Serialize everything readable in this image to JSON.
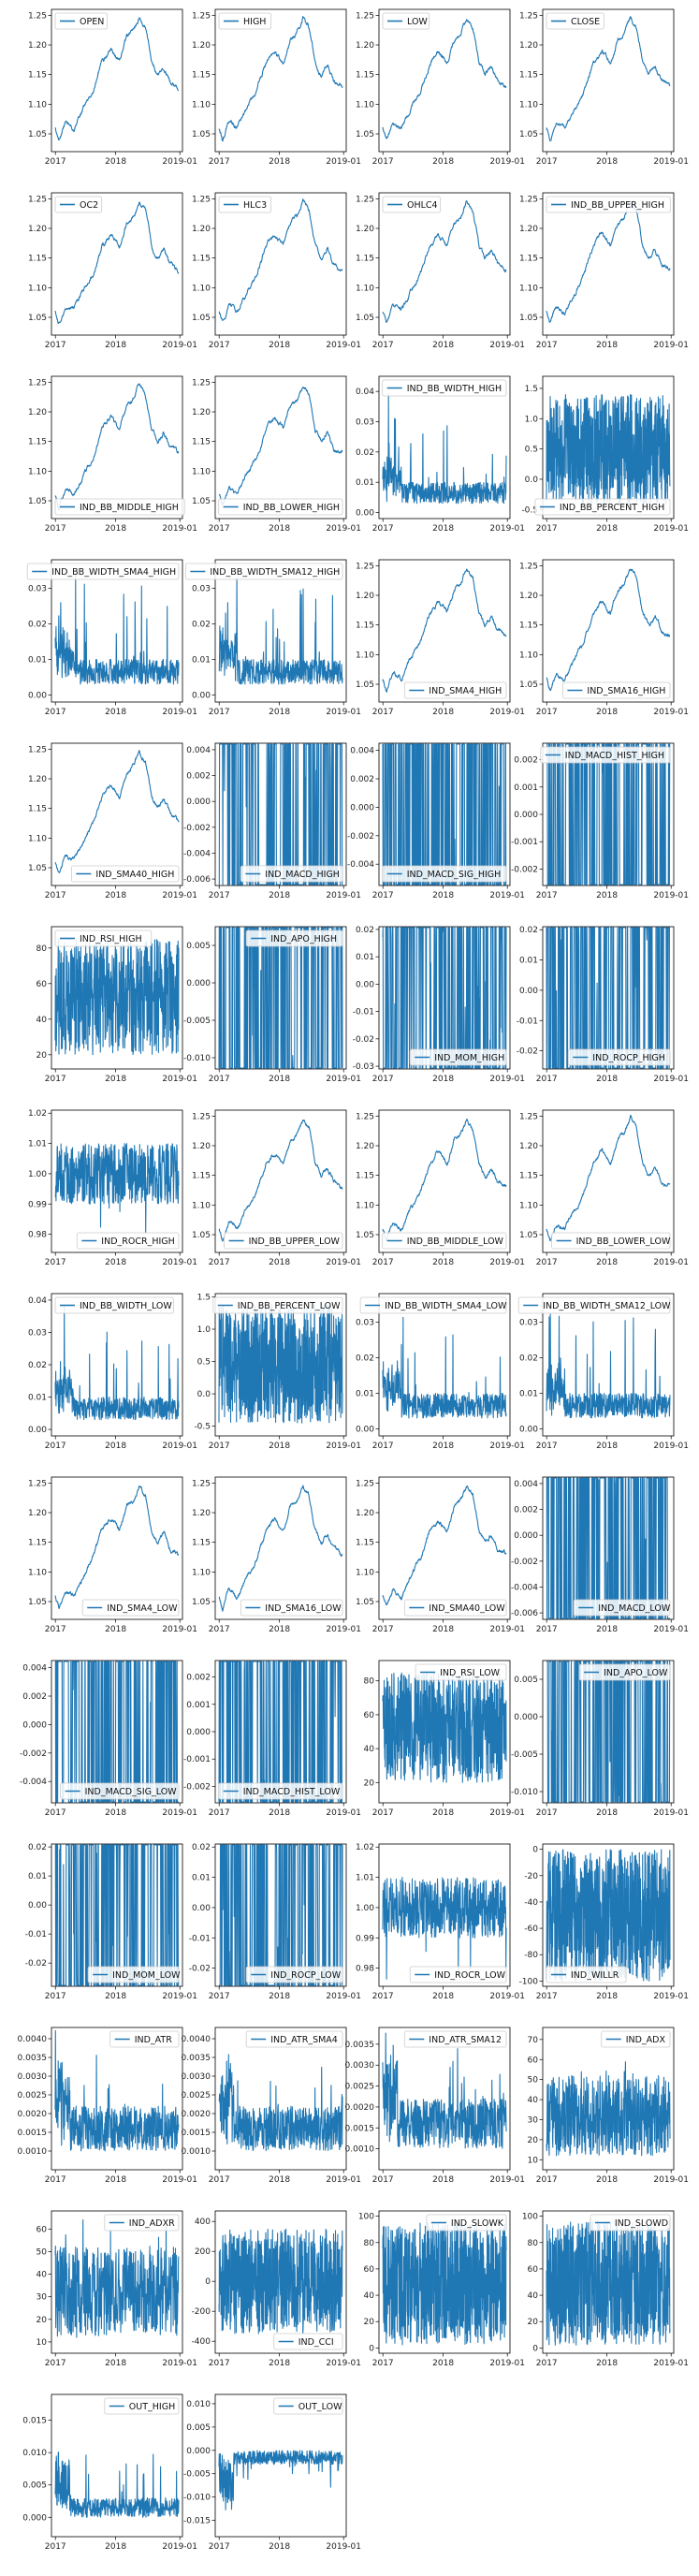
{
  "colors": {
    "series": "#1f77b4",
    "axis": "#000000",
    "background": "#ffffff"
  },
  "x_ticks": [
    "2017",
    "2018",
    "2019-01"
  ],
  "chart_data": [
    {
      "type": "line",
      "legend": "OPEN",
      "legend_loc": "upper-left",
      "shape": "price",
      "ylim": [
        1.02,
        1.26
      ],
      "yticks": [
        "1.05",
        "1.10",
        "1.15",
        "1.20",
        "1.25"
      ]
    },
    {
      "type": "line",
      "legend": "HIGH",
      "legend_loc": "upper-left",
      "shape": "price",
      "ylim": [
        1.02,
        1.26
      ],
      "yticks": [
        "1.05",
        "1.10",
        "1.15",
        "1.20",
        "1.25"
      ]
    },
    {
      "type": "line",
      "legend": "LOW",
      "legend_loc": "upper-left",
      "shape": "price",
      "ylim": [
        1.02,
        1.26
      ],
      "yticks": [
        "1.05",
        "1.10",
        "1.15",
        "1.20",
        "1.25"
      ]
    },
    {
      "type": "line",
      "legend": "CLOSE",
      "legend_loc": "upper-left",
      "shape": "price",
      "ylim": [
        1.02,
        1.26
      ],
      "yticks": [
        "1.05",
        "1.10",
        "1.15",
        "1.20",
        "1.25"
      ]
    },
    {
      "type": "line",
      "legend": "OC2",
      "legend_loc": "upper-left",
      "shape": "price",
      "ylim": [
        1.02,
        1.26
      ],
      "yticks": [
        "1.05",
        "1.10",
        "1.15",
        "1.20",
        "1.25"
      ]
    },
    {
      "type": "line",
      "legend": "HLC3",
      "legend_loc": "upper-left",
      "shape": "price",
      "ylim": [
        1.02,
        1.26
      ],
      "yticks": [
        "1.05",
        "1.10",
        "1.15",
        "1.20",
        "1.25"
      ]
    },
    {
      "type": "line",
      "legend": "OHLC4",
      "legend_loc": "upper-left",
      "shape": "price",
      "ylim": [
        1.02,
        1.26
      ],
      "yticks": [
        "1.05",
        "1.10",
        "1.15",
        "1.20",
        "1.25"
      ]
    },
    {
      "type": "line",
      "legend": "IND_BB_UPPER_HIGH",
      "legend_loc": "upper-left",
      "shape": "price",
      "ylim": [
        1.02,
        1.26
      ],
      "yticks": [
        "1.05",
        "1.10",
        "1.15",
        "1.20",
        "1.25"
      ]
    },
    {
      "type": "line",
      "legend": "IND_BB_MIDDLE_HIGH",
      "legend_loc": "lower-left",
      "shape": "price",
      "ylim": [
        1.02,
        1.26
      ],
      "yticks": [
        "1.05",
        "1.10",
        "1.15",
        "1.20",
        "1.25"
      ]
    },
    {
      "type": "line",
      "legend": "IND_BB_LOWER_HIGH",
      "legend_loc": "lower-right",
      "shape": "price",
      "ylim": [
        1.02,
        1.26
      ],
      "yticks": [
        "1.05",
        "1.10",
        "1.15",
        "1.20",
        "1.25"
      ]
    },
    {
      "type": "line",
      "legend": "IND_BB_WIDTH_HIGH",
      "legend_loc": "upper-right",
      "shape": "width",
      "ylim": [
        -0.002,
        0.045
      ],
      "yticks": [
        "0.00",
        "0.01",
        "0.02",
        "0.03",
        "0.04"
      ]
    },
    {
      "type": "line",
      "legend": "IND_BB_PERCENT_HIGH",
      "legend_loc": "lower-right",
      "shape": "percent",
      "ylim": [
        -0.65,
        1.7
      ],
      "yticks": [
        "-0.5",
        "0.0",
        "0.5",
        "1.0",
        "1.5"
      ]
    },
    {
      "type": "line",
      "legend": "IND_BB_WIDTH_SMA4_HIGH",
      "legend_loc": "upper-right",
      "shape": "width",
      "ylim": [
        -0.002,
        0.038
      ],
      "yticks": [
        "0.00",
        "0.01",
        "0.02",
        "0.03"
      ]
    },
    {
      "type": "line",
      "legend": "IND_BB_WIDTH_SMA12_HIGH",
      "legend_loc": "upper-right",
      "shape": "width",
      "ylim": [
        -0.002,
        0.038
      ],
      "yticks": [
        "0.00",
        "0.01",
        "0.02",
        "0.03"
      ]
    },
    {
      "type": "line",
      "legend": "IND_SMA4_HIGH",
      "legend_loc": "lower-right",
      "shape": "price",
      "ylim": [
        1.02,
        1.26
      ],
      "yticks": [
        "1.05",
        "1.10",
        "1.15",
        "1.20",
        "1.25"
      ]
    },
    {
      "type": "line",
      "legend": "IND_SMA16_HIGH",
      "legend_loc": "lower-right",
      "shape": "price",
      "ylim": [
        1.02,
        1.26
      ],
      "yticks": [
        "1.05",
        "1.10",
        "1.15",
        "1.20",
        "1.25"
      ]
    },
    {
      "type": "line",
      "legend": "IND_SMA40_HIGH",
      "legend_loc": "lower-right",
      "shape": "price",
      "ylim": [
        1.02,
        1.26
      ],
      "yticks": [
        "1.05",
        "1.10",
        "1.15",
        "1.20",
        "1.25"
      ]
    },
    {
      "type": "line",
      "legend": "IND_MACD_HIGH",
      "legend_loc": "lower-right",
      "shape": "osc",
      "ylim": [
        -0.0065,
        0.0045
      ],
      "yticks": [
        "-0.006",
        "-0.004",
        "-0.002",
        "0.000",
        "0.002",
        "0.004"
      ]
    },
    {
      "type": "line",
      "legend": "IND_MACD_SIG_HIGH",
      "legend_loc": "lower-right",
      "shape": "osc",
      "ylim": [
        -0.0055,
        0.0045
      ],
      "yticks": [
        "-0.004",
        "-0.002",
        "0.000",
        "0.002",
        "0.004"
      ]
    },
    {
      "type": "line",
      "legend": "IND_MACD_HIST_HIGH",
      "legend_loc": "upper-right",
      "shape": "osc",
      "ylim": [
        -0.0026,
        0.0026
      ],
      "yticks": [
        "-0.002",
        "-0.001",
        "0.000",
        "0.001",
        "0.002"
      ]
    },
    {
      "type": "line",
      "legend": "IND_RSI_HIGH",
      "legend_loc": "upper-left",
      "shape": "rsi",
      "ylim": [
        12,
        92
      ],
      "yticks": [
        "20",
        "40",
        "60",
        "80"
      ]
    },
    {
      "type": "line",
      "legend": "IND_APO_HIGH",
      "legend_loc": "upper-right",
      "shape": "osc",
      "ylim": [
        -0.0115,
        0.0075
      ],
      "yticks": [
        "-0.010",
        "-0.005",
        "0.000",
        "0.005"
      ]
    },
    {
      "type": "line",
      "legend": "IND_MOM_HIGH",
      "legend_loc": "lower-right",
      "shape": "osc",
      "ylim": [
        -0.031,
        0.021
      ],
      "yticks": [
        "-0.03",
        "-0.02",
        "-0.01",
        "0.00",
        "0.01",
        "0.02"
      ]
    },
    {
      "type": "line",
      "legend": "IND_ROCP_HIGH",
      "legend_loc": "lower-right",
      "shape": "osc",
      "ylim": [
        -0.026,
        0.021
      ],
      "yticks": [
        "-0.02",
        "-0.01",
        "0.00",
        "0.01",
        "0.02"
      ]
    },
    {
      "type": "line",
      "legend": "IND_ROCR_HIGH",
      "legend_loc": "lower-right",
      "shape": "ratio",
      "ylim": [
        0.974,
        1.021
      ],
      "yticks": [
        "0.98",
        "0.99",
        "1.00",
        "1.01",
        "1.02"
      ]
    },
    {
      "type": "line",
      "legend": "IND_BB_UPPER_LOW",
      "legend_loc": "lower-right",
      "shape": "price",
      "ylim": [
        1.02,
        1.26
      ],
      "yticks": [
        "1.05",
        "1.10",
        "1.15",
        "1.20",
        "1.25"
      ]
    },
    {
      "type": "line",
      "legend": "IND_BB_MIDDLE_LOW",
      "legend_loc": "lower-right",
      "shape": "price",
      "ylim": [
        1.02,
        1.26
      ],
      "yticks": [
        "1.05",
        "1.10",
        "1.15",
        "1.20",
        "1.25"
      ]
    },
    {
      "type": "line",
      "legend": "IND_BB_LOWER_LOW",
      "legend_loc": "lower-right",
      "shape": "price",
      "ylim": [
        1.02,
        1.26
      ],
      "yticks": [
        "1.05",
        "1.10",
        "1.15",
        "1.20",
        "1.25"
      ]
    },
    {
      "type": "line",
      "legend": "IND_BB_WIDTH_LOW",
      "legend_loc": "upper-left",
      "shape": "width",
      "ylim": [
        -0.002,
        0.042
      ],
      "yticks": [
        "0.00",
        "0.01",
        "0.02",
        "0.03",
        "0.04"
      ]
    },
    {
      "type": "line",
      "legend": "IND_BB_PERCENT_LOW",
      "legend_loc": "upper-right",
      "shape": "percent",
      "ylim": [
        -0.65,
        1.55
      ],
      "yticks": [
        "-0.5",
        "0.0",
        "0.5",
        "1.0",
        "1.5"
      ]
    },
    {
      "type": "line",
      "legend": "IND_BB_WIDTH_SMA4_LOW",
      "legend_loc": "upper-right",
      "shape": "width",
      "ylim": [
        -0.002,
        0.038
      ],
      "yticks": [
        "0.00",
        "0.01",
        "0.02",
        "0.03"
      ]
    },
    {
      "type": "line",
      "legend": "IND_BB_WIDTH_SMA12_LOW",
      "legend_loc": "upper-right",
      "shape": "width",
      "ylim": [
        -0.002,
        0.038
      ],
      "yticks": [
        "0.00",
        "0.01",
        "0.02",
        "0.03"
      ]
    },
    {
      "type": "line",
      "legend": "IND_SMA4_LOW",
      "legend_loc": "lower-right",
      "shape": "price",
      "ylim": [
        1.02,
        1.26
      ],
      "yticks": [
        "1.05",
        "1.10",
        "1.15",
        "1.20",
        "1.25"
      ]
    },
    {
      "type": "line",
      "legend": "IND_SMA16_LOW",
      "legend_loc": "lower-right",
      "shape": "price",
      "ylim": [
        1.02,
        1.26
      ],
      "yticks": [
        "1.05",
        "1.10",
        "1.15",
        "1.20",
        "1.25"
      ]
    },
    {
      "type": "line",
      "legend": "IND_SMA40_LOW",
      "legend_loc": "lower-right",
      "shape": "price",
      "ylim": [
        1.02,
        1.26
      ],
      "yticks": [
        "1.05",
        "1.10",
        "1.15",
        "1.20",
        "1.25"
      ]
    },
    {
      "type": "line",
      "legend": "IND_MACD_LOW",
      "legend_loc": "lower-right",
      "shape": "osc",
      "ylim": [
        -0.0065,
        0.0045
      ],
      "yticks": [
        "-0.006",
        "-0.004",
        "-0.002",
        "0.000",
        "0.002",
        "0.004"
      ]
    },
    {
      "type": "line",
      "legend": "IND_MACD_SIG_LOW",
      "legend_loc": "lower-right",
      "shape": "osc",
      "ylim": [
        -0.0055,
        0.0045
      ],
      "yticks": [
        "-0.004",
        "-0.002",
        "0.000",
        "0.002",
        "0.004"
      ]
    },
    {
      "type": "line",
      "legend": "IND_MACD_HIST_LOW",
      "legend_loc": "lower-right",
      "shape": "osc",
      "ylim": [
        -0.0026,
        0.0026
      ],
      "yticks": [
        "-0.002",
        "-0.001",
        "0.000",
        "0.001",
        "0.002"
      ]
    },
    {
      "type": "line",
      "legend": "IND_RSI_LOW",
      "legend_loc": "upper-right",
      "shape": "rsi",
      "ylim": [
        8,
        92
      ],
      "yticks": [
        "20",
        "40",
        "60",
        "80"
      ]
    },
    {
      "type": "line",
      "legend": "IND_APO_LOW",
      "legend_loc": "upper-right",
      "shape": "osc",
      "ylim": [
        -0.0115,
        0.0075
      ],
      "yticks": [
        "-0.010",
        "-0.005",
        "0.000",
        "0.005"
      ]
    },
    {
      "type": "line",
      "legend": "IND_MOM_LOW",
      "legend_loc": "lower-right",
      "shape": "osc",
      "ylim": [
        -0.028,
        0.021
      ],
      "yticks": [
        "-0.02",
        "-0.01",
        "0.00",
        "0.01",
        "0.02"
      ]
    },
    {
      "type": "line",
      "legend": "IND_ROCP_LOW",
      "legend_loc": "lower-right",
      "shape": "osc",
      "ylim": [
        -0.026,
        0.021
      ],
      "yticks": [
        "-0.02",
        "-0.01",
        "0.00",
        "0.01",
        "0.02"
      ]
    },
    {
      "type": "line",
      "legend": "IND_ROCR_LOW",
      "legend_loc": "lower-right",
      "shape": "ratio",
      "ylim": [
        0.974,
        1.021
      ],
      "yticks": [
        "0.98",
        "0.99",
        "1.00",
        "1.01",
        "1.02"
      ]
    },
    {
      "type": "line",
      "legend": "IND_WILLR",
      "legend_loc": "lower-left",
      "shape": "willr",
      "ylim": [
        -104,
        4
      ],
      "yticks": [
        "-100",
        "-80",
        "-60",
        "-40",
        "-20",
        "0"
      ]
    },
    {
      "type": "line",
      "legend": "IND_ATR",
      "legend_loc": "upper-right",
      "shape": "atr",
      "ylim": [
        0.0005,
        0.0043
      ],
      "yticks": [
        "0.0010",
        "0.0015",
        "0.0020",
        "0.0025",
        "0.0030",
        "0.0035",
        "0.0040"
      ]
    },
    {
      "type": "line",
      "legend": "IND_ATR_SMA4",
      "legend_loc": "upper-right",
      "shape": "atr",
      "ylim": [
        0.0005,
        0.0043
      ],
      "yticks": [
        "0.0010",
        "0.0015",
        "0.0020",
        "0.0025",
        "0.0030",
        "0.0035",
        "0.0040"
      ]
    },
    {
      "type": "line",
      "legend": "IND_ATR_SMA12",
      "legend_loc": "upper-right",
      "shape": "atr",
      "ylim": [
        0.0005,
        0.0039
      ],
      "yticks": [
        "0.0010",
        "0.0015",
        "0.0020",
        "0.0025",
        "0.0030",
        "0.0035"
      ]
    },
    {
      "type": "line",
      "legend": "IND_ADX",
      "legend_loc": "upper-right",
      "shape": "adx",
      "ylim": [
        5,
        76
      ],
      "yticks": [
        "10",
        "20",
        "30",
        "40",
        "50",
        "60",
        "70"
      ]
    },
    {
      "type": "line",
      "legend": "IND_ADXR",
      "legend_loc": "upper-right",
      "shape": "adx",
      "ylim": [
        5,
        68
      ],
      "yticks": [
        "10",
        "20",
        "30",
        "40",
        "50",
        "60"
      ]
    },
    {
      "type": "line",
      "legend": "IND_CCI",
      "legend_loc": "lower-right",
      "shape": "cci",
      "ylim": [
        -480,
        470
      ],
      "yticks": [
        "-400",
        "-200",
        "0",
        "200",
        "400"
      ]
    },
    {
      "type": "line",
      "legend": "IND_SLOWK",
      "legend_loc": "upper-right",
      "shape": "stoch",
      "ylim": [
        -4,
        104
      ],
      "yticks": [
        "0",
        "20",
        "40",
        "60",
        "80",
        "100"
      ]
    },
    {
      "type": "line",
      "legend": "IND_SLOWD",
      "legend_loc": "upper-right",
      "shape": "stoch",
      "ylim": [
        -4,
        104
      ],
      "yticks": [
        "0",
        "20",
        "40",
        "60",
        "80",
        "100"
      ]
    },
    {
      "type": "line",
      "legend": "OUT_HIGH",
      "legend_loc": "upper-right",
      "shape": "outhigh",
      "ylim": [
        -0.003,
        0.019
      ],
      "yticks": [
        "0.000",
        "0.005",
        "0.010",
        "0.015"
      ]
    },
    {
      "type": "line",
      "legend": "OUT_LOW",
      "legend_loc": "upper-right",
      "shape": "outlow",
      "ylim": [
        -0.0185,
        0.012
      ],
      "yticks": [
        "-0.015",
        "-0.010",
        "-0.005",
        "0.000",
        "0.005",
        "0.010"
      ]
    }
  ]
}
